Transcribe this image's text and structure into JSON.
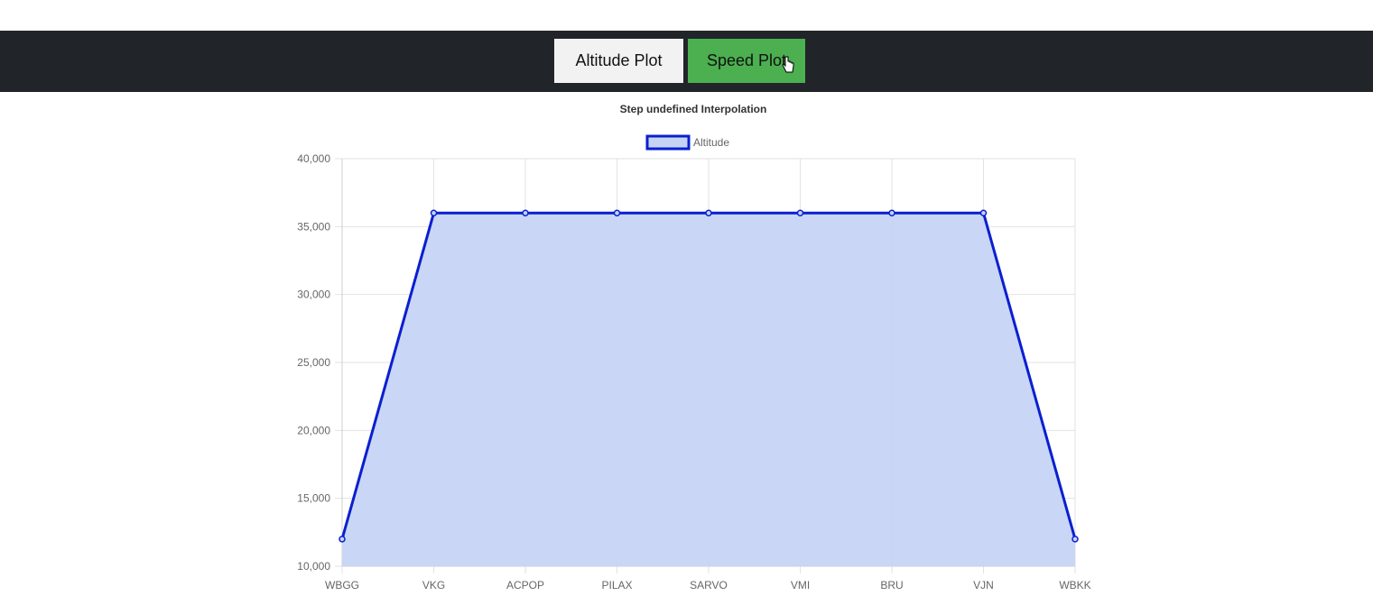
{
  "toolbar": {
    "altitude_label": "Altitude Plot",
    "speed_label": "Speed Plot",
    "speed_color": "#4caf50",
    "bar_color": "#212529"
  },
  "chart_data": {
    "type": "area",
    "title": "Step undefined Interpolation",
    "categories": [
      "WBGG",
      "VKG",
      "ACPOP",
      "PILAX",
      "SARVO",
      "VMI",
      "BRU",
      "VJN",
      "WBKK"
    ],
    "series": [
      {
        "name": "Altitude",
        "values": [
          12000,
          36000,
          36000,
          36000,
          36000,
          36000,
          36000,
          36000,
          12000
        ],
        "line_color": "#0a1fd0",
        "fill_color": "#c6d4f4"
      }
    ],
    "ylim": [
      10000,
      40000
    ],
    "yticks": [
      "10,000",
      "15,000",
      "20,000",
      "25,000",
      "30,000",
      "35,000",
      "40,000"
    ],
    "grid": true,
    "legend": "top"
  }
}
